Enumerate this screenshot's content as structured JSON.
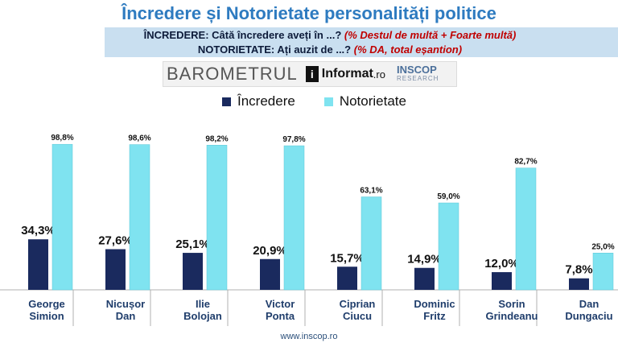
{
  "title": "Încredere și Notorietate personalități politice",
  "subtitle": {
    "line1_main": "ÎNCREDERE: Câtă încredere aveți în ...?",
    "line1_note": "(% Destul de multă + Foarte multă)",
    "line2_main": "NOTORIETATE: Ați auzit de ...?",
    "line2_note": "(% DA, total eșantion)"
  },
  "logos": {
    "barometru": "BAROMETRUL",
    "informat": "Informat",
    "informat_suffix": ".ro",
    "informat_mark": "i",
    "inscop": "INSCOP",
    "inscop_sub": "RESEARCH"
  },
  "website": "www.inscop.ro",
  "colors": {
    "incredere": "#1a2a5e",
    "notorietate": "#7fe3f0",
    "title": "#2e7bc0"
  },
  "chart_data": {
    "type": "bar",
    "categories": [
      [
        "George",
        "Simion"
      ],
      [
        "Nicușor",
        "Dan"
      ],
      [
        "Ilie",
        "Bolojan"
      ],
      [
        "Victor",
        "Ponta"
      ],
      [
        "Ciprian",
        "Ciucu"
      ],
      [
        "Dominic",
        "Fritz"
      ],
      [
        "Sorin",
        "Grindeanu"
      ],
      [
        "Dan",
        "Dungaciu"
      ]
    ],
    "series": [
      {
        "name": "Încredere",
        "values": [
          34.3,
          27.6,
          25.1,
          20.9,
          15.7,
          14.9,
          12.0,
          7.8
        ],
        "labels": [
          "34,3%",
          "27,6%",
          "25,1%",
          "20,9%",
          "15,7%",
          "14,9%",
          "12,0%",
          "7,8%"
        ]
      },
      {
        "name": "Notorietate",
        "values": [
          98.8,
          98.6,
          98.2,
          97.8,
          63.1,
          59.0,
          82.7,
          25.0
        ],
        "labels": [
          "98,8%",
          "98,6%",
          "98,2%",
          "97,8%",
          "63,1%",
          "59,0%",
          "82,7%",
          "25,0%"
        ]
      }
    ],
    "ylim": [
      0,
      100
    ],
    "legend": "top"
  }
}
